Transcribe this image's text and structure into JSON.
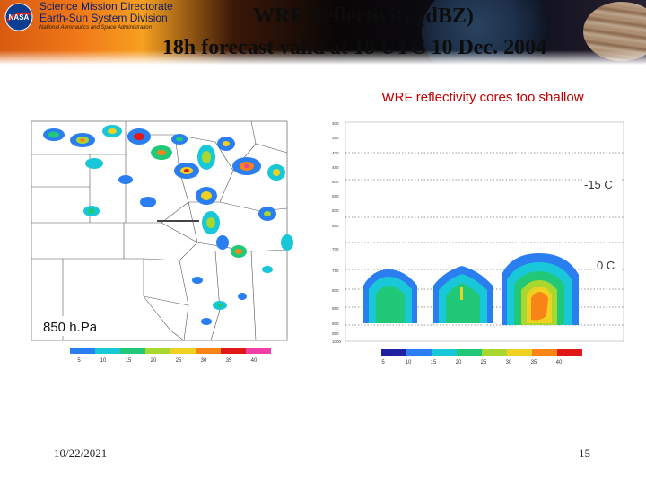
{
  "header": {
    "org_line1": "Science Mission Directorate",
    "org_line2": "Earth-Sun System Division",
    "org_line3": "National Aeronautics and Space Administration",
    "logo_text": "NASA",
    "title_line1": "WRF Reflectivity (dBZ)",
    "title_line2": "18h forecast valid at 18 UTC 10 Dec. 2004"
  },
  "caption": "WRF reflectivity cores too shallow",
  "map_panel": {
    "level_label": "850 h.Pa",
    "colorbar_ticks": [
      "5",
      "10",
      "15",
      "20",
      "25",
      "30",
      "35",
      "40"
    ]
  },
  "cross_section": {
    "label_upper": "-15 C",
    "label_lower": "0 C",
    "pressure_ticks": [
      "300",
      "350",
      "400",
      "450",
      "500",
      "550",
      "600",
      "650",
      "700",
      "750",
      "800",
      "850",
      "900",
      "950",
      "1000"
    ],
    "colorbar_ticks": [
      "5",
      "10",
      "15",
      "20",
      "25",
      "30",
      "35",
      "40"
    ]
  },
  "colors": {
    "dbz_scale": [
      "#2020a0",
      "#2a7ef0",
      "#18c8d8",
      "#20c878",
      "#a8d830",
      "#f0d020",
      "#f88418",
      "#e01818",
      "#f040a8"
    ]
  },
  "footer": {
    "date": "10/22/2021",
    "page_number": "15"
  }
}
